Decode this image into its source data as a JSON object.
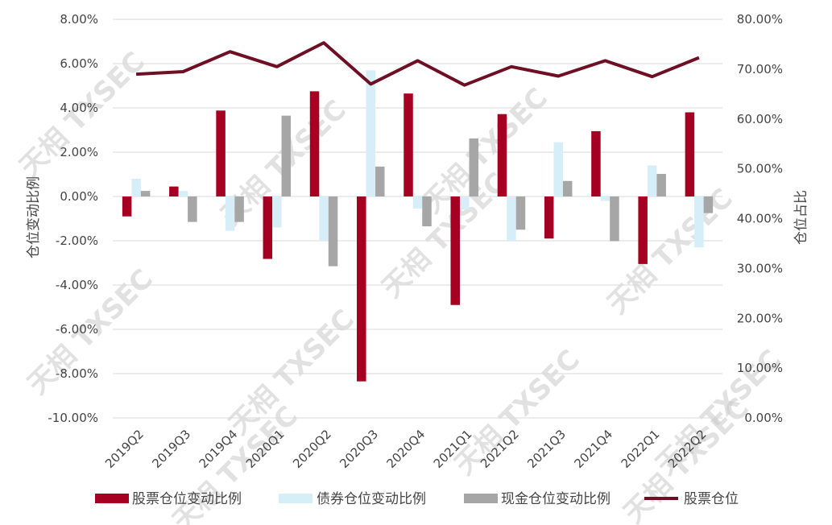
{
  "colors": {
    "stock_change": "#a50021",
    "bond_change": "#d6eef8",
    "cash_change": "#a6a6a6",
    "stock_position": "#6e0f24",
    "grid": "#d9d9d9"
  },
  "watermark_text": "天相 TXSEC",
  "chart_data": {
    "type": "bar",
    "categories": [
      "2019Q2",
      "2019Q3",
      "2019Q4",
      "2020Q1",
      "2020Q2",
      "2020Q3",
      "2020Q4",
      "2021Q1",
      "2021Q2",
      "2021Q3",
      "2021Q4",
      "2022Q1",
      "2022Q2"
    ],
    "series": [
      {
        "name": "股票仓位变动比例",
        "type": "bar",
        "axis": "left",
        "color": "#a50021",
        "values": [
          -0.9,
          0.45,
          3.88,
          -2.82,
          4.75,
          -8.35,
          4.65,
          -4.9,
          3.72,
          -1.9,
          2.95,
          -3.05,
          3.8
        ]
      },
      {
        "name": "债券仓位变动比例",
        "type": "bar",
        "axis": "left",
        "color": "#d6eef8",
        "values": [
          0.8,
          0.25,
          -1.55,
          -1.4,
          -2.0,
          5.7,
          -0.55,
          -0.6,
          -2.0,
          2.45,
          -0.2,
          1.4,
          -2.3
        ]
      },
      {
        "name": "现金仓位变动比例",
        "type": "bar",
        "axis": "left",
        "color": "#a6a6a6",
        "values": [
          0.25,
          -1.15,
          -1.15,
          3.65,
          -3.15,
          1.35,
          -1.35,
          2.62,
          -1.5,
          0.7,
          -2.02,
          1.02,
          -0.75
        ]
      },
      {
        "name": "股票仓位",
        "type": "line",
        "axis": "right",
        "color": "#6e0f24",
        "values": [
          69.0,
          69.5,
          73.5,
          70.5,
          75.3,
          67.0,
          71.7,
          66.8,
          70.5,
          68.6,
          71.7,
          68.5,
          72.3
        ]
      }
    ],
    "y_left": {
      "title": "仓位变动比例",
      "min": -10,
      "max": 8,
      "step": 2,
      "tick_labels": [
        "-10.00%",
        "-8.00%",
        "-6.00%",
        "-4.00%",
        "-2.00%",
        "0.00%",
        "2.00%",
        "4.00%",
        "6.00%",
        "8.00%"
      ]
    },
    "y_right": {
      "title": "仓位占比",
      "min": 0,
      "max": 80,
      "step": 10,
      "tick_labels": [
        "0.00%",
        "10.00%",
        "20.00%",
        "30.00%",
        "40.00%",
        "50.00%",
        "60.00%",
        "70.00%",
        "80.00%"
      ]
    },
    "grid": true,
    "legend_position": "bottom"
  }
}
